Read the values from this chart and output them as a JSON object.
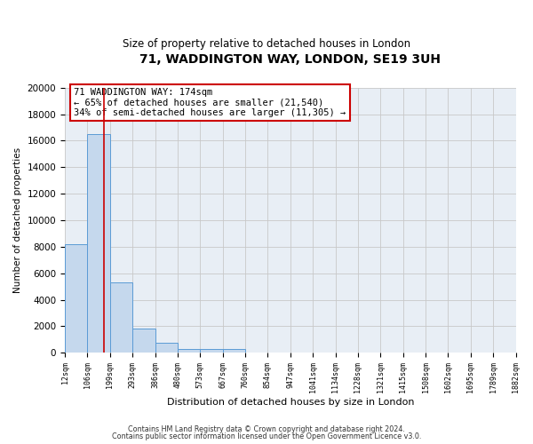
{
  "title": "71, WADDINGTON WAY, LONDON, SE19 3UH",
  "subtitle": "Size of property relative to detached houses in London",
  "xlabel": "Distribution of detached houses by size in London",
  "ylabel": "Number of detached properties",
  "bar_values": [
    8200,
    16500,
    5300,
    1800,
    750,
    300,
    280,
    270,
    0,
    0,
    0,
    0,
    0,
    0,
    0,
    0,
    0,
    0,
    0,
    0
  ],
  "bar_labels": [
    "12sqm",
    "106sqm",
    "199sqm",
    "293sqm",
    "386sqm",
    "480sqm",
    "573sqm",
    "667sqm",
    "760sqm",
    "854sqm",
    "947sqm",
    "1041sqm",
    "1134sqm",
    "1228sqm",
    "1321sqm",
    "1415sqm",
    "1508sqm",
    "1602sqm",
    "1695sqm",
    "1789sqm",
    "1882sqm"
  ],
  "ylim": [
    0,
    20000
  ],
  "yticks": [
    0,
    2000,
    4000,
    6000,
    8000,
    10000,
    12000,
    14000,
    16000,
    18000,
    20000
  ],
  "bar_color": "#c5d8ed",
  "bar_edge_color": "#5b9bd5",
  "vline_x_bar_index": 1.75,
  "vline_color": "#cc0000",
  "annotation_title": "71 WADDINGTON WAY: 174sqm",
  "annotation_line1": "← 65% of detached houses are smaller (21,540)",
  "annotation_line2": "34% of semi-detached houses are larger (11,305) →",
  "annotation_box_color": "#ffffff",
  "annotation_box_edge": "#cc0000",
  "footer_line1": "Contains HM Land Registry data © Crown copyright and database right 2024.",
  "footer_line2": "Contains public sector information licensed under the Open Government Licence v3.0.",
  "background_color": "#ffffff",
  "plot_bg_color": "#e8eef5",
  "grid_color": "#c8c8c8",
  "n_total_bars": 20
}
